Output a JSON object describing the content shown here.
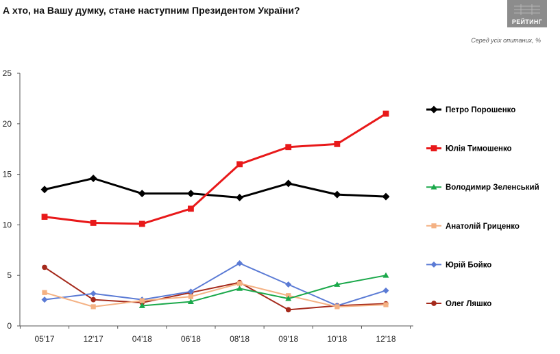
{
  "header": {
    "title": "А хто, на Вашу думку, стане наступним Президентом України?",
    "logo_text": "РЕЙТИНГ",
    "subtitle": "Серед усіх опитаних, %"
  },
  "chart_data": {
    "type": "line",
    "categories": [
      "05'17",
      "12'17",
      "04'18",
      "06'18",
      "08'18",
      "09'18",
      "10'18",
      "12'18"
    ],
    "ylim": [
      0,
      25
    ],
    "yticks": [
      0,
      5,
      10,
      15,
      20,
      25
    ],
    "grid": false,
    "legend_position": "right",
    "series": [
      {
        "name": "Петро Порошенко",
        "color": "#000000",
        "marker": "diamond",
        "width": 3,
        "values": [
          13.5,
          14.6,
          13.1,
          13.1,
          12.7,
          14.1,
          13.0,
          12.8
        ]
      },
      {
        "name": "Юлія Тимошенко",
        "color": "#e8191a",
        "marker": "square",
        "width": 3,
        "values": [
          10.8,
          10.2,
          10.1,
          11.6,
          16.0,
          17.7,
          18.0,
          21.0
        ]
      },
      {
        "name": "Володимир Зеленський",
        "color": "#1aa84a",
        "marker": "triangle",
        "width": 2,
        "values": [
          null,
          null,
          2.0,
          2.4,
          3.7,
          2.7,
          4.1,
          5.0
        ]
      },
      {
        "name": "Анатолій Гриценко",
        "color": "#f4b183",
        "marker": "square",
        "width": 2,
        "values": [
          3.3,
          1.9,
          2.5,
          2.9,
          4.2,
          3.0,
          1.9,
          2.1
        ]
      },
      {
        "name": "Юрій Бойко",
        "color": "#5b7bd5",
        "marker": "diamond",
        "width": 2,
        "values": [
          2.6,
          3.2,
          2.6,
          3.4,
          6.2,
          4.1,
          2.0,
          3.5
        ]
      },
      {
        "name": "Олег Ляшко",
        "color": "#a52a1c",
        "marker": "circle",
        "width": 2,
        "values": [
          5.8,
          2.6,
          2.3,
          3.3,
          4.3,
          1.6,
          2.0,
          2.2
        ]
      }
    ]
  }
}
